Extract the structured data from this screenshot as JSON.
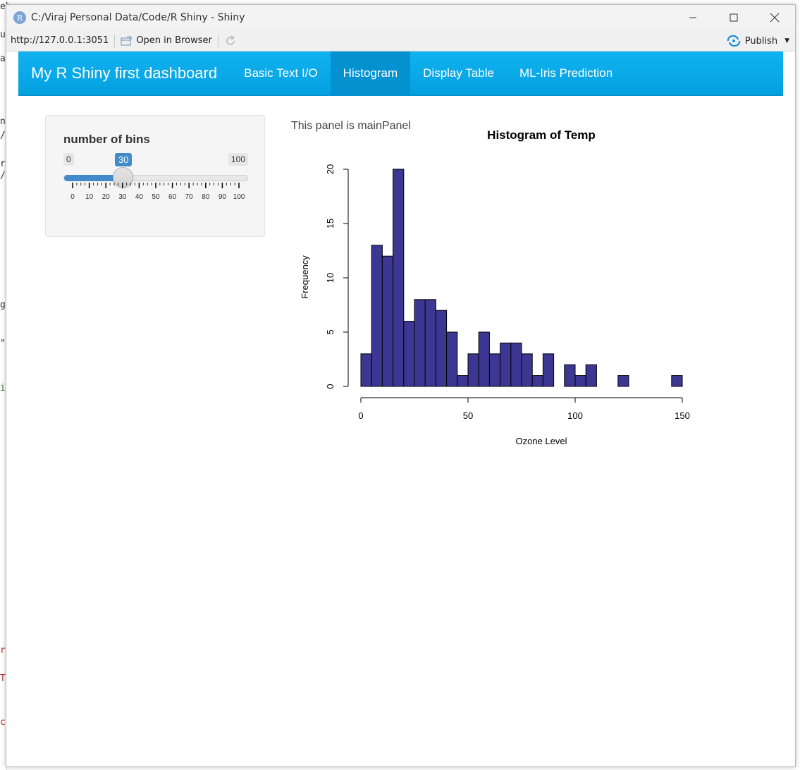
{
  "window": {
    "title": "C:/Viraj Personal Data/Code/R Shiny - Shiny",
    "app_icon_letter": "R"
  },
  "addressbar": {
    "url": "http://127.0.0.1:3051",
    "open_browser_label": "Open in Browser",
    "publish_label": "Publish"
  },
  "navbar": {
    "brand": "My R Shiny first dashboard",
    "tabs": [
      {
        "label": "Basic Text I/O",
        "active": false
      },
      {
        "label": "Histogram",
        "active": true
      },
      {
        "label": "Display Table",
        "active": false
      },
      {
        "label": "ML-Iris Prediction",
        "active": false
      }
    ]
  },
  "sidebar": {
    "label": "number of bins",
    "slider": {
      "min": "0",
      "max": "100",
      "value": "30",
      "fraction": 0.3,
      "tick_labels": [
        "0",
        "10",
        "20",
        "30",
        "40",
        "50",
        "60",
        "70",
        "80",
        "90",
        "100"
      ]
    }
  },
  "main": {
    "text": "This panel is mainPanel"
  },
  "background_chars": [
    "eb",
    "u",
    "a",
    "n",
    "/",
    "r",
    "/",
    "g",
    "\"",
    "i",
    "r",
    "T",
    "c"
  ],
  "colors": {
    "navbar": "#03a0e0",
    "bar_fill": "#3b3793",
    "slider_accent": "#428bca"
  },
  "chart_data": {
    "type": "bar",
    "title": "Histogram of Temp",
    "xlabel": "Ozone Level",
    "ylabel": "Frequency",
    "bin_width": 5,
    "bin_start": 0,
    "values": [
      3,
      13,
      12,
      20,
      6,
      8,
      8,
      7,
      5,
      1,
      3,
      5,
      3,
      4,
      4,
      3,
      1,
      3,
      0,
      2,
      1,
      2,
      0,
      0,
      1,
      0,
      0,
      0,
      0,
      1
    ],
    "xlim": [
      0,
      150
    ],
    "ylim": [
      0,
      20
    ],
    "x_ticks": [
      "0",
      "50",
      "100",
      "150"
    ],
    "y_ticks": [
      "0",
      "5",
      "10",
      "15",
      "20"
    ],
    "grid": false,
    "legend": "none"
  }
}
